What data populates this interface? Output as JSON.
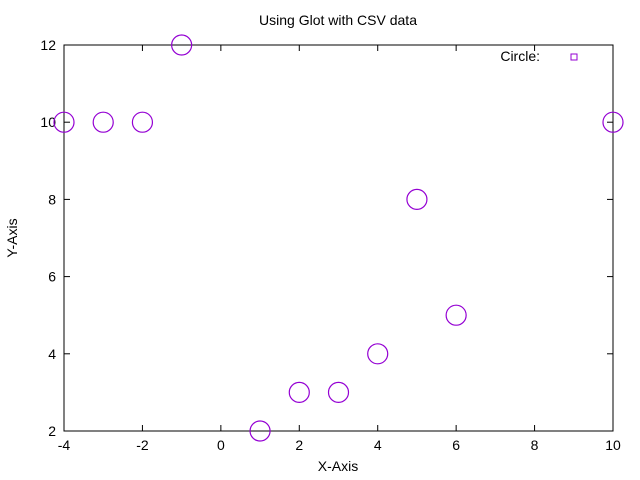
{
  "chart_data": {
    "type": "scatter",
    "title": "Using Glot with CSV data",
    "xlabel": "X-Axis",
    "ylabel": "Y-Axis",
    "xlim": [
      -4,
      10
    ],
    "ylim": [
      2,
      12
    ],
    "xticks": [
      -4,
      -2,
      0,
      2,
      4,
      6,
      8,
      10
    ],
    "yticks": [
      2,
      4,
      6,
      8,
      10,
      12
    ],
    "xtick_labels": [
      "-4",
      "-2",
      "0",
      "2",
      "4",
      "6",
      "8",
      "10"
    ],
    "ytick_labels": [
      "2",
      "4",
      "6",
      "8",
      "10",
      "12"
    ],
    "grid": false,
    "legend_position": "top-right",
    "series": [
      {
        "name": "Circle:",
        "color": "#9400d3",
        "marker": "circle",
        "points": [
          {
            "x": -4,
            "y": 10
          },
          {
            "x": -3,
            "y": 10
          },
          {
            "x": -2,
            "y": 10
          },
          {
            "x": -1,
            "y": 12
          },
          {
            "x": 1,
            "y": 2
          },
          {
            "x": 2,
            "y": 3
          },
          {
            "x": 3,
            "y": 3
          },
          {
            "x": 4,
            "y": 4
          },
          {
            "x": 5,
            "y": 8
          },
          {
            "x": 6,
            "y": 5
          },
          {
            "x": 10,
            "y": 10
          }
        ]
      }
    ]
  }
}
